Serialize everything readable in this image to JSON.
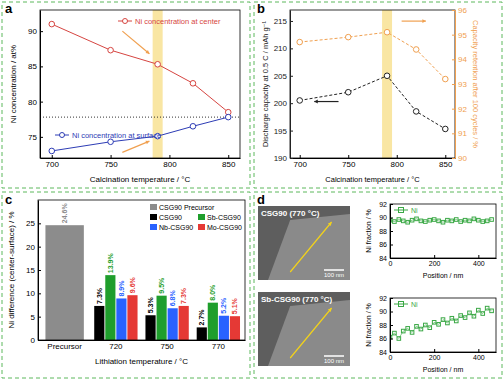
{
  "chart_data": [
    {
      "panel": "a",
      "type": "line",
      "xlabel": "Calcination temperature / °C",
      "ylabel": "Ni concentration / at%",
      "x": [
        700,
        750,
        790,
        820,
        850
      ],
      "series": [
        {
          "name": "Ni concentration at center",
          "color": "#d64541",
          "marker": "circle",
          "values": [
            91,
            87.3,
            85.3,
            82.6,
            78.5
          ]
        },
        {
          "name": "Ni concentration at surface",
          "color": "#2d3cb5",
          "marker": "circle",
          "values": [
            73,
            74.3,
            75.1,
            76.5,
            77.8
          ]
        }
      ],
      "xlim": [
        690,
        860
      ],
      "xticks": [
        700,
        750,
        800,
        850
      ],
      "ylim": [
        72,
        93
      ],
      "yticks": [
        75,
        80,
        85,
        90
      ],
      "hline": 77.8,
      "highlight": 790
    },
    {
      "panel": "b",
      "type": "line",
      "xlabel": "Calcination temperature / °C",
      "ylabel": "Discharge capacity at 0.5 C / mAh g⁻¹",
      "y2label": "Capacity retention after 100 cycles / %",
      "x": [
        700,
        750,
        790,
        820,
        850
      ],
      "series": [
        {
          "color": "#222222",
          "marker": "circle",
          "line_style": "dashed",
          "values": [
            200.5,
            202,
            205,
            198.5,
            195.3
          ]
        },
        {
          "color": "#f0a050",
          "marker": "circle",
          "line_style": "dashed",
          "axis": "y2",
          "values": [
            94.7,
            94.9,
            95.1,
            94.4,
            93.2
          ]
        }
      ],
      "xlim": [
        690,
        860
      ],
      "xticks": [
        700,
        750,
        800,
        850
      ],
      "ylim": [
        190,
        217
      ],
      "yticks": [
        190,
        195,
        200,
        205,
        210,
        215
      ],
      "y2lim": [
        90,
        96
      ],
      "y2ticks": [
        90,
        91,
        92,
        93,
        94,
        95,
        96
      ],
      "highlight": 790
    },
    {
      "panel": "c",
      "type": "bar",
      "xlabel": "Lithiation temperature / °C",
      "ylabel": "Ni difference (center-surface) / %",
      "categories": [
        "Precursor",
        "720",
        "750",
        "770"
      ],
      "series": [
        {
          "name": "CSG90 Precursor",
          "color": "#8c8c8c",
          "values": [
            24.6,
            null,
            null,
            null
          ],
          "value_labels": [
            "24.6%",
            null,
            null,
            null
          ]
        },
        {
          "name": "CSG90",
          "color": "#000000",
          "values": [
            null,
            7.3,
            5.3,
            2.7
          ],
          "value_labels": [
            null,
            "7.3%",
            "5.3%",
            "2.7%"
          ]
        },
        {
          "name": "Sb-CSG90",
          "color": "#1f9e2c",
          "values": [
            null,
            13.9,
            9.5,
            8.0
          ],
          "value_labels": [
            null,
            "13.9%",
            "9.5%",
            "8.0%"
          ]
        },
        {
          "name": "Nb-CSG90",
          "color": "#2962ff",
          "values": [
            null,
            8.9,
            6.8,
            5.2
          ],
          "value_labels": [
            null,
            "8.9%",
            "6.8%",
            "5.2%"
          ]
        },
        {
          "name": "Mo-CSG90",
          "color": "#e53935",
          "values": [
            null,
            9.6,
            7.3,
            5.1
          ],
          "value_labels": [
            null,
            "9.6%",
            "7.3%",
            "5.1%"
          ]
        }
      ],
      "ylim": [
        0,
        30
      ],
      "yticks": [
        0,
        5,
        10,
        15,
        20,
        25
      ],
      "data_labels": true,
      "legend": "upper right"
    },
    {
      "panel": "d",
      "type": "line",
      "image_label": "CSG90 (770 °C)",
      "scale_bar": "100 nm",
      "xlabel": "Position / nm",
      "ylabel": "Ni fraction / %",
      "x": [
        0,
        20,
        40,
        60,
        80,
        100,
        120,
        140,
        160,
        180,
        200,
        220,
        240,
        260,
        280,
        300,
        320,
        340,
        360,
        380,
        400,
        420,
        440,
        460
      ],
      "series": [
        {
          "name": "Ni",
          "color": "#3aa845",
          "marker": "square",
          "values": [
            89.6,
            89.4,
            89.7,
            89.5,
            89.3,
            89.6,
            89.8,
            89.5,
            89.4,
            89.6,
            89.7,
            89.5,
            89.3,
            89.6,
            89.5,
            89.7,
            89.4,
            89.6,
            89.5,
            89.8,
            89.6,
            89.4,
            89.5,
            89.7
          ]
        }
      ],
      "xlim": [
        0,
        480
      ],
      "xticks": [
        0,
        200,
        400
      ],
      "ylim": [
        84,
        92
      ],
      "yticks": [
        84,
        86,
        88,
        90,
        92
      ],
      "legend": "upper left"
    },
    {
      "type": "line",
      "image_label": "Sb-CSG90 (770 °C)",
      "scale_bar": "100 nm",
      "xlabel": "Position / nm",
      "ylabel": "Ni fraction / %",
      "x": [
        0,
        20,
        40,
        60,
        80,
        100,
        120,
        140,
        160,
        180,
        200,
        220,
        240,
        260,
        280,
        300,
        320,
        340,
        360,
        380,
        400,
        420,
        440,
        460
      ],
      "series": [
        {
          "name": "Ni",
          "color": "#3aa845",
          "marker": "square",
          "values": [
            86.2,
            86.8,
            86.0,
            87.1,
            87.5,
            86.9,
            87.8,
            87.4,
            88.0,
            87.6,
            88.4,
            88.1,
            88.8,
            88.3,
            89.0,
            88.6,
            89.4,
            89.1,
            89.8,
            89.3,
            90.2,
            89.7,
            90.5,
            90.1
          ]
        }
      ],
      "xlim": [
        0,
        480
      ],
      "xticks": [
        0,
        200,
        400
      ],
      "ylim": [
        84,
        92
      ],
      "yticks": [
        84,
        86,
        88,
        90,
        92
      ],
      "legend": "upper left"
    }
  ]
}
